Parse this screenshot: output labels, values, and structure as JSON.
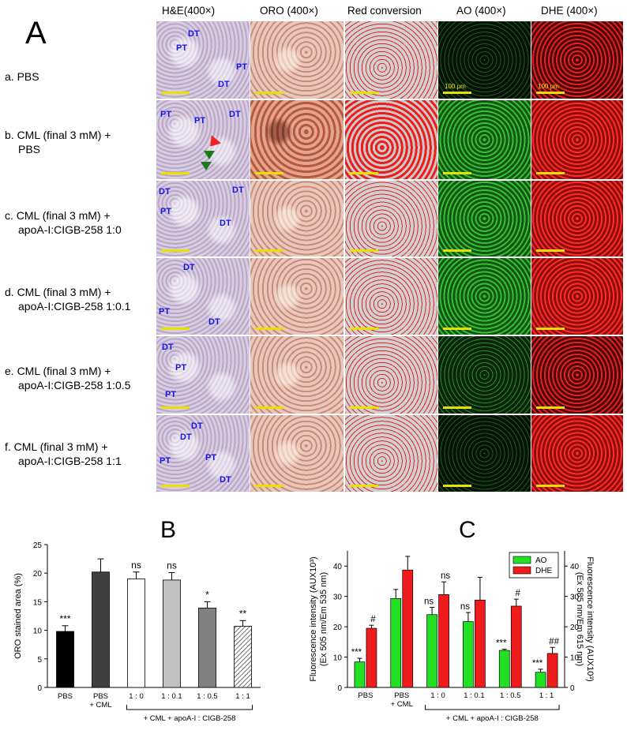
{
  "panelA": {
    "letter": "A",
    "columns": [
      "H&E(400×)",
      "ORO (400×)",
      "Red conversion",
      "AO (400×)",
      "DHE (400×)"
    ],
    "rows": [
      {
        "line1": "a. PBS",
        "line2": ""
      },
      {
        "line1": "b. CML (final 3 mM) +",
        "line2": "PBS"
      },
      {
        "line1": "c. CML (final 3 mM)  +",
        "line2": "apoA-I:CIGB-258  1:0"
      },
      {
        "line1": "d. CML (final 3 mM)  +",
        "line2": "apoA-I:CIGB-258  1:0.1"
      },
      {
        "line1": "e. CML (final 3 mM)  +",
        "line2": "apoA-I:CIGB-258  1:0.5"
      },
      {
        "line1": "f. CML (final 3 mM) +",
        "line2": "apoA-I:CIGB-258  1:1"
      }
    ],
    "scale_text": "100 μm",
    "tissue_labels": {
      "row_a": [
        "DT",
        "PT",
        "PT",
        "DT"
      ],
      "row_b": [
        "PT",
        "PT",
        "DT"
      ],
      "row_c": [
        "DT",
        "PT",
        "DT",
        "DT"
      ],
      "row_d": [
        "DT",
        "PT",
        "DT"
      ],
      "row_e": [
        "DT",
        "PT",
        "PT"
      ],
      "row_f": [
        "DT",
        "DT",
        "PT",
        "PT",
        "DT"
      ]
    }
  },
  "chart_data": [
    {
      "panel": "B",
      "type": "bar",
      "ylabel": "ORO stained area (%)",
      "ylim": [
        0,
        25
      ],
      "yticks": [
        0,
        5,
        10,
        15,
        20,
        25
      ],
      "categories": [
        "PBS",
        "PBS\n+ CML",
        "1 : 0",
        "1 : 0.1",
        "1 : 0.5",
        "1 : 1"
      ],
      "values": [
        9.8,
        20.2,
        19.0,
        18.8,
        13.9,
        10.7
      ],
      "errors": [
        1.0,
        2.3,
        1.2,
        1.3,
        1.1,
        1.0
      ],
      "significance": [
        "***",
        "",
        "ns",
        "ns",
        "*",
        "**"
      ],
      "fills": [
        "#000000",
        "#404040",
        "#ffffff",
        "#c0c0c0",
        "#808080",
        "hatch"
      ],
      "group_label": "+ CML + apoA-I : CIGB-258"
    },
    {
      "panel": "C",
      "type": "bar",
      "ylabel_left": "Fluorescence intensity (AUX10³)",
      "ylabel_left2": "(Ex 505 nm/Em 535 nm)",
      "ylabel_right": "Fluorescence intensity (AUX10³)",
      "ylabel_right2": "(Ex 585 nm/Em 615 nm)",
      "ylim": [
        0,
        45
      ],
      "yticks": [
        0,
        10,
        20,
        30,
        40
      ],
      "categories": [
        "PBS",
        "PBS\n+ CML",
        "1 : 0",
        "1 : 0.1",
        "1 : 0.5",
        "1 : 1"
      ],
      "series": [
        {
          "name": "AO",
          "color": "#22e022",
          "values": [
            8.4,
            29.3,
            24.0,
            21.7,
            12.2,
            5.0
          ],
          "errors": [
            1.2,
            3.0,
            2.4,
            3.0,
            0.4,
            1.0
          ],
          "significance": [
            "***",
            "",
            "ns",
            "ns",
            "***",
            "***"
          ]
        },
        {
          "name": "DHE",
          "color": "#ee1c1c",
          "values": [
            19.5,
            38.7,
            30.6,
            28.8,
            26.8,
            11.2
          ],
          "errors": [
            1.0,
            4.5,
            4.2,
            7.5,
            2.3,
            2.0
          ],
          "significance": [
            "#",
            "",
            "ns",
            "",
            "#",
            "##"
          ]
        }
      ],
      "legend_position": "top-right",
      "group_label": "+ CML + apoA-I : CIGB-258"
    }
  ],
  "panel_letters": {
    "B": "B",
    "C": "C"
  }
}
